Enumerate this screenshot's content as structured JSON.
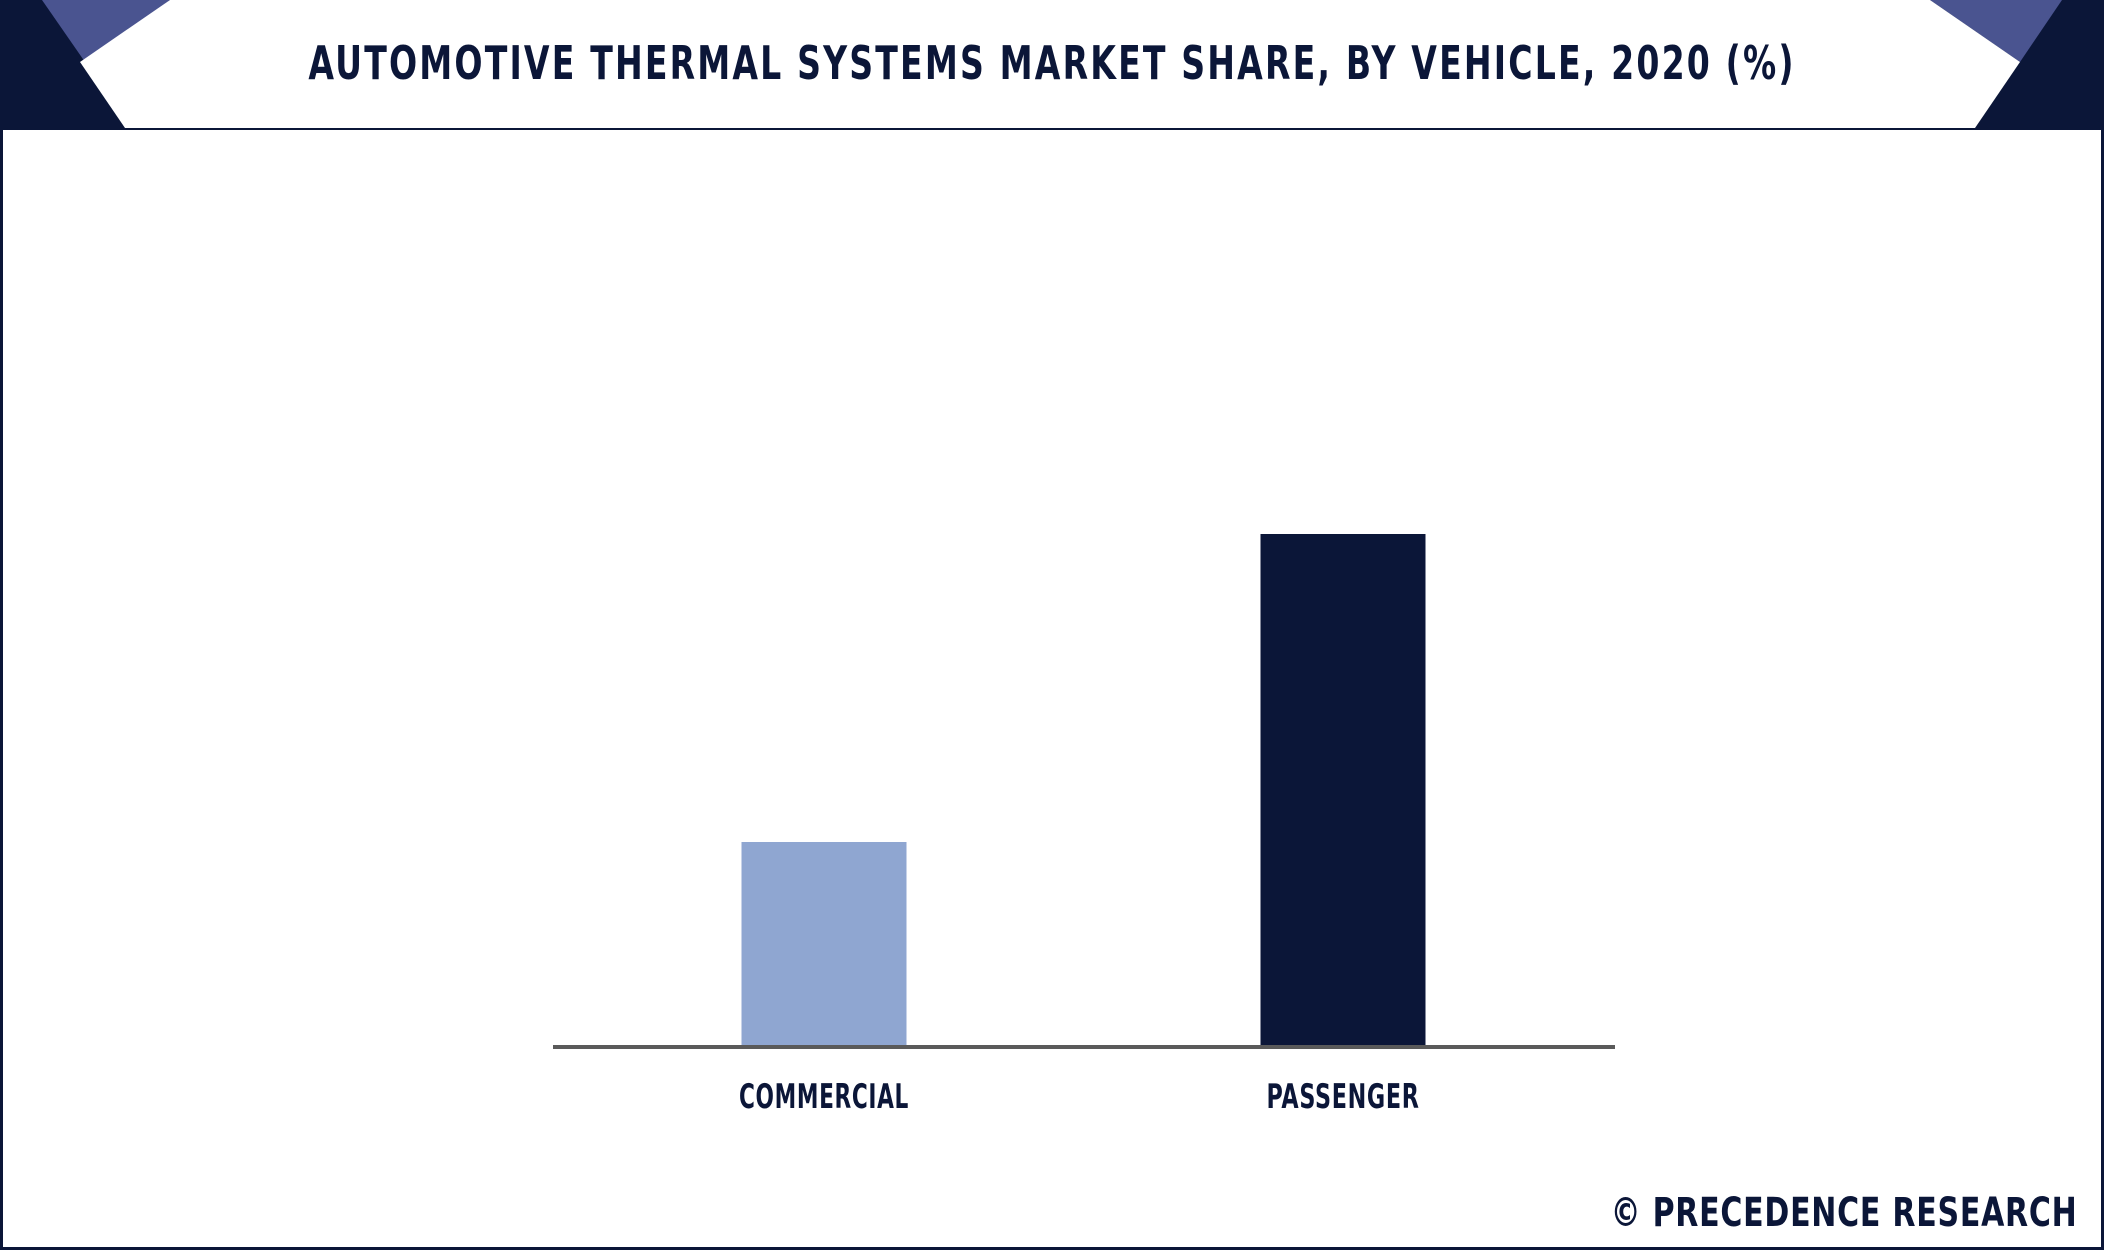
{
  "chart_data": {
    "type": "bar",
    "title": "AUTOMOTIVE THERMAL SYSTEMS MARKET SHARE, BY VEHICLE, 2020 (%)",
    "categories": [
      "COMMERCIAL",
      "PASSENGER"
    ],
    "values": [
      29,
      73
    ],
    "colors": [
      "#8fa6d1",
      "#0b1638"
    ],
    "ylim": [
      0,
      100
    ],
    "xlabel": "",
    "ylabel": "",
    "grid": false,
    "legend": "none"
  },
  "branding": {
    "text": "© PRECEDENCE RESEARCH"
  },
  "colors": {
    "navy": "#0b1638",
    "accent_blue": "#4a5490",
    "axis_gray": "#5a5a5a"
  }
}
